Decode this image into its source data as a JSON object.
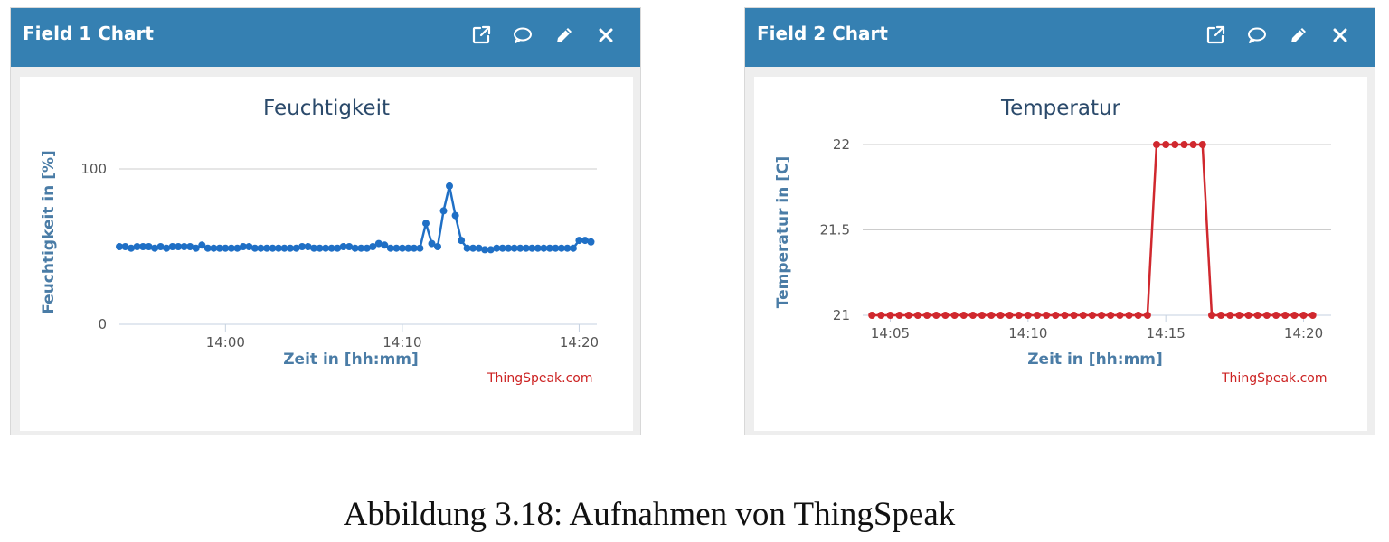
{
  "panels": [
    {
      "header_title": "Field 1 Chart",
      "icons": [
        "external-link-icon",
        "comment-icon",
        "pencil-icon",
        "close-icon"
      ],
      "credit": "ThingSpeak.com"
    },
    {
      "header_title": "Field 2 Chart",
      "icons": [
        "external-link-icon",
        "comment-icon",
        "pencil-icon",
        "close-icon"
      ],
      "credit": "ThingSpeak.com"
    }
  ],
  "caption": "Abbildung 3.18: Aufnahmen von ThingSpeak",
  "colors": {
    "header": "#3580b2",
    "series_1": "#1f6fc5",
    "series_2": "#d0282e",
    "credit": "#cc2222"
  },
  "chart_data": [
    {
      "type": "line",
      "title": "Feuchtigkeit",
      "xlabel": "Zeit in [hh:mm]",
      "ylabel": "Feuchtigkeit in [%]",
      "xlim": [
        "13:54",
        "14:21"
      ],
      "ylim": [
        0,
        100
      ],
      "yticks": [
        0,
        100
      ],
      "xticks": [
        "14:00",
        "14:10",
        "14:20"
      ],
      "grid": true,
      "legend": "none",
      "series": [
        {
          "x": [
            "13:54:00",
            "13:54:20",
            "13:54:40",
            "13:55:00",
            "13:55:20",
            "13:55:40",
            "13:56:00",
            "13:56:20",
            "13:56:40",
            "13:57:00",
            "13:57:20",
            "13:57:40",
            "13:58:00",
            "13:58:20",
            "13:58:40",
            "13:59:00",
            "13:59:20",
            "13:59:40",
            "14:00:00",
            "14:00:20",
            "14:00:40",
            "14:01:00",
            "14:01:20",
            "14:01:40",
            "14:02:00",
            "14:02:20",
            "14:02:40",
            "14:03:00",
            "14:03:20",
            "14:03:40",
            "14:04:00",
            "14:04:20",
            "14:04:40",
            "14:05:00",
            "14:05:20",
            "14:05:40",
            "14:06:00",
            "14:06:20",
            "14:06:40",
            "14:07:00",
            "14:07:20",
            "14:07:40",
            "14:08:00",
            "14:08:20",
            "14:08:40",
            "14:09:00",
            "14:09:20",
            "14:09:40",
            "14:10:00",
            "14:10:20",
            "14:10:40",
            "14:11:00",
            "14:11:20",
            "14:11:40",
            "14:12:00",
            "14:12:20",
            "14:12:40",
            "14:13:00",
            "14:13:20",
            "14:13:40",
            "14:14:00",
            "14:14:20",
            "14:14:40",
            "14:15:00",
            "14:15:20",
            "14:15:40",
            "14:16:00",
            "14:16:20",
            "14:16:40",
            "14:17:00",
            "14:17:20",
            "14:17:40",
            "14:18:00",
            "14:18:20",
            "14:18:40",
            "14:19:00",
            "14:19:20",
            "14:19:40",
            "14:20:00",
            "14:20:20",
            "14:20:40"
          ],
          "values": [
            50,
            50,
            49,
            50,
            50,
            50,
            49,
            50,
            49,
            50,
            50,
            50,
            50,
            49,
            51,
            49,
            49,
            49,
            49,
            49,
            49,
            50,
            50,
            49,
            49,
            49,
            49,
            49,
            49,
            49,
            49,
            50,
            50,
            49,
            49,
            49,
            49,
            49,
            50,
            50,
            49,
            49,
            49,
            50,
            52,
            51,
            49,
            49,
            49,
            49,
            49,
            49,
            65,
            52,
            50,
            73,
            89,
            70,
            54,
            49,
            49,
            49,
            48,
            48,
            49,
            49,
            49,
            49,
            49,
            49,
            49,
            49,
            49,
            49,
            49,
            49,
            49,
            49,
            54,
            54,
            53
          ]
        }
      ]
    },
    {
      "type": "line",
      "title": "Temperatur",
      "xlabel": "Zeit in [hh:mm]",
      "ylabel": "Temperatur in [C]",
      "xlim": [
        "14:04",
        "14:21"
      ],
      "ylim": [
        21,
        22
      ],
      "yticks": [
        21,
        21.5,
        22
      ],
      "xticks": [
        "14:05",
        "14:10",
        "14:15",
        "14:20"
      ],
      "grid": true,
      "legend": "none",
      "series": [
        {
          "x": [
            "14:04:20",
            "14:04:40",
            "14:05:00",
            "14:05:20",
            "14:05:40",
            "14:06:00",
            "14:06:20",
            "14:06:40",
            "14:07:00",
            "14:07:20",
            "14:07:40",
            "14:08:00",
            "14:08:20",
            "14:08:40",
            "14:09:00",
            "14:09:20",
            "14:09:40",
            "14:10:00",
            "14:10:20",
            "14:10:40",
            "14:11:00",
            "14:11:20",
            "14:11:40",
            "14:12:00",
            "14:12:20",
            "14:12:40",
            "14:13:00",
            "14:13:20",
            "14:13:40",
            "14:14:00",
            "14:14:20",
            "14:14:40",
            "14:15:00",
            "14:15:20",
            "14:15:40",
            "14:16:00",
            "14:16:20",
            "14:16:40",
            "14:17:00",
            "14:17:20",
            "14:17:40",
            "14:18:00",
            "14:18:20",
            "14:18:40",
            "14:19:00",
            "14:19:20",
            "14:19:40",
            "14:20:00",
            "14:20:20"
          ],
          "values": [
            21,
            21,
            21,
            21,
            21,
            21,
            21,
            21,
            21,
            21,
            21,
            21,
            21,
            21,
            21,
            21,
            21,
            21,
            21,
            21,
            21,
            21,
            21,
            21,
            21,
            21,
            21,
            21,
            21,
            21,
            21,
            22,
            22,
            22,
            22,
            22,
            22,
            21,
            21,
            21,
            21,
            21,
            21,
            21,
            21,
            21,
            21,
            21,
            21
          ]
        }
      ]
    }
  ]
}
